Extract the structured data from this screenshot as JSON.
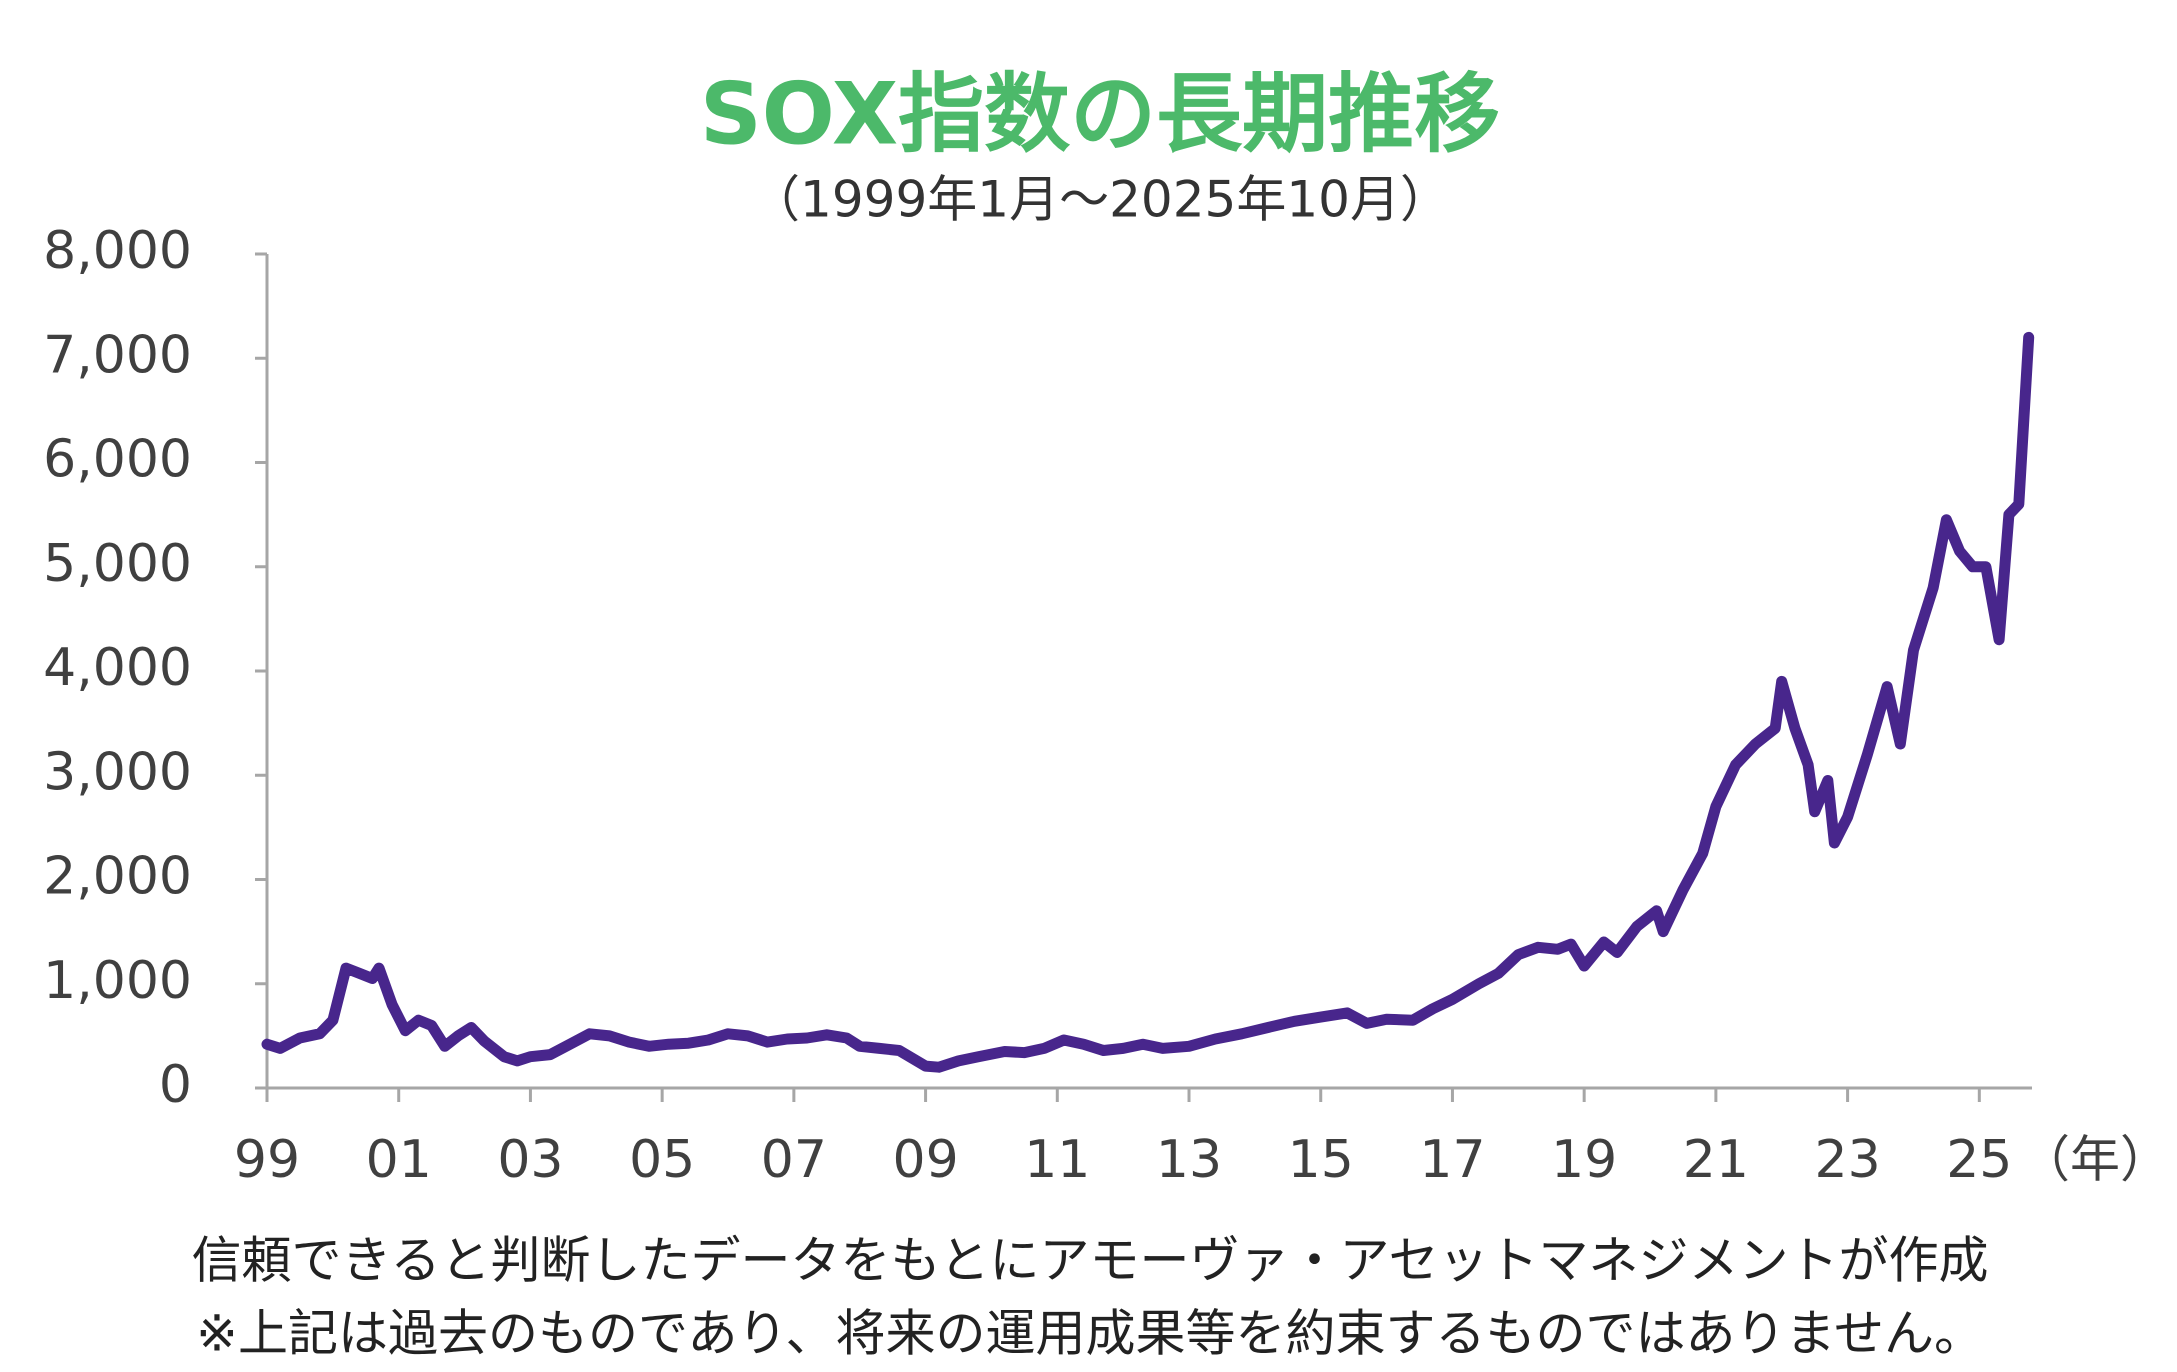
{
  "chart_data": {
    "type": "line",
    "title": "SOX指数の長期推移",
    "subtitle": "（1999年1月～2025年10月）",
    "x_label": "（年）",
    "notes": [
      "信頼できると判断したデータをもとにアモーヴァ・アセットマネジメントが作成",
      "※上記は過去のものであり、将来の運用成果等を約束するものではありません。"
    ],
    "color": "#48268c",
    "x": [
      1999.0,
      1999.2,
      1999.5,
      1999.8,
      2000.0,
      2000.2,
      2000.4,
      2000.6,
      2000.7,
      2000.9,
      2001.1,
      2001.3,
      2001.5,
      2001.7,
      2001.9,
      2002.1,
      2002.3,
      2002.6,
      2002.8,
      2003.0,
      2003.3,
      2003.6,
      2003.9,
      2004.2,
      2004.5,
      2004.8,
      2005.1,
      2005.4,
      2005.7,
      2006.0,
      2006.3,
      2006.6,
      2006.9,
      2007.2,
      2007.5,
      2007.8,
      2008.0,
      2008.3,
      2008.6,
      2009.0,
      2009.2,
      2009.5,
      2009.8,
      2010.2,
      2010.5,
      2010.8,
      2011.1,
      2011.4,
      2011.7,
      2012.0,
      2012.3,
      2012.6,
      2013.0,
      2013.4,
      2013.8,
      2014.2,
      2014.6,
      2015.0,
      2015.4,
      2015.7,
      2016.0,
      2016.4,
      2016.7,
      2017.0,
      2017.4,
      2017.7,
      2018.0,
      2018.3,
      2018.6,
      2018.8,
      2019.0,
      2019.3,
      2019.5,
      2019.8,
      2020.1,
      2020.2,
      2020.5,
      2020.8,
      2021.0,
      2021.3,
      2021.6,
      2021.9,
      2022.0,
      2022.2,
      2022.4,
      2022.5,
      2022.7,
      2022.8,
      2023.0,
      2023.3,
      2023.6,
      2023.8,
      2024.0,
      2024.3,
      2024.5,
      2024.7,
      2024.9,
      2025.1,
      2025.3,
      2025.45,
      2025.6,
      2025.75
    ],
    "values": [
      420,
      380,
      480,
      520,
      650,
      1150,
      1100,
      1050,
      1150,
      800,
      550,
      650,
      600,
      400,
      500,
      580,
      450,
      300,
      260,
      300,
      320,
      420,
      520,
      500,
      440,
      400,
      420,
      430,
      460,
      520,
      500,
      440,
      470,
      480,
      510,
      480,
      400,
      380,
      360,
      210,
      200,
      260,
      300,
      350,
      340,
      380,
      460,
      420,
      360,
      380,
      420,
      380,
      400,
      470,
      520,
      580,
      640,
      680,
      720,
      620,
      660,
      650,
      760,
      850,
      1000,
      1100,
      1280,
      1350,
      1330,
      1380,
      1170,
      1400,
      1300,
      1550,
      1700,
      1500,
      1900,
      2250,
      2700,
      3100,
      3300,
      3450,
      3900,
      3450,
      3100,
      2650,
      2950,
      2350,
      2600,
      3200,
      3850,
      3300,
      4200,
      4800,
      5450,
      5150,
      5000,
      5000,
      4300,
      5500,
      5600,
      7200
    ],
    "xlim": [
      1999,
      2025.8
    ],
    "ylim": [
      0,
      8000
    ],
    "xticks": [
      {
        "value": 1999,
        "label": "99"
      },
      {
        "value": 2001,
        "label": "01"
      },
      {
        "value": 2003,
        "label": "03"
      },
      {
        "value": 2005,
        "label": "05"
      },
      {
        "value": 2007,
        "label": "07"
      },
      {
        "value": 2009,
        "label": "09"
      },
      {
        "value": 2011,
        "label": "11"
      },
      {
        "value": 2013,
        "label": "13"
      },
      {
        "value": 2015,
        "label": "15"
      },
      {
        "value": 2017,
        "label": "17"
      },
      {
        "value": 2019,
        "label": "19"
      },
      {
        "value": 2021,
        "label": "21"
      },
      {
        "value": 2023,
        "label": "23"
      },
      {
        "value": 2025,
        "label": "25"
      }
    ],
    "yticks": [
      0,
      {
        "value": 1000,
        "label": "1,000"
      },
      {
        "value": 2000,
        "label": "2,000"
      },
      {
        "value": 3000,
        "label": "3,000"
      },
      {
        "value": 4000,
        "label": "4,000"
      },
      {
        "value": 5000,
        "label": "5,000"
      },
      {
        "value": 6000,
        "label": "6,000"
      },
      {
        "value": 7000,
        "label": "7,000"
      },
      {
        "value": 8000,
        "label": "8,000"
      }
    ]
  }
}
